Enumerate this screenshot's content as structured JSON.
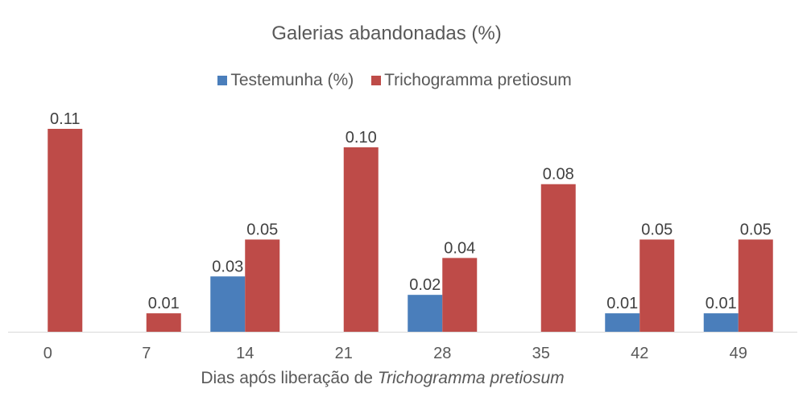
{
  "chart_data": {
    "type": "bar",
    "title": "Galerias abandonadas (%)",
    "xlabel_prefix": "Dias após liberação de ",
    "xlabel_italic": "Trichogramma pretiosum",
    "categories": [
      "0",
      "7",
      "14",
      "21",
      "28",
      "35",
      "42",
      "49"
    ],
    "series": [
      {
        "name": "Testemunha (%)",
        "color": "#4a7ebb",
        "values": [
          null,
          null,
          0.03,
          null,
          0.02,
          null,
          0.01,
          0.01
        ],
        "labels": [
          "",
          "",
          "0.03",
          "",
          "0.02",
          "",
          "0.01",
          "0.01"
        ]
      },
      {
        "name": "Trichogramma pretiosum",
        "color": "#be4b48",
        "values": [
          0.11,
          0.01,
          0.05,
          0.1,
          0.04,
          0.08,
          0.05,
          0.05
        ],
        "labels": [
          "0.11",
          "0.01",
          "0.05",
          "0.10",
          "0.04",
          "0.08",
          "0.05",
          "0.05"
        ]
      }
    ],
    "ylim": [
      0,
      0.11
    ],
    "grid": false,
    "legend_position": "top"
  }
}
